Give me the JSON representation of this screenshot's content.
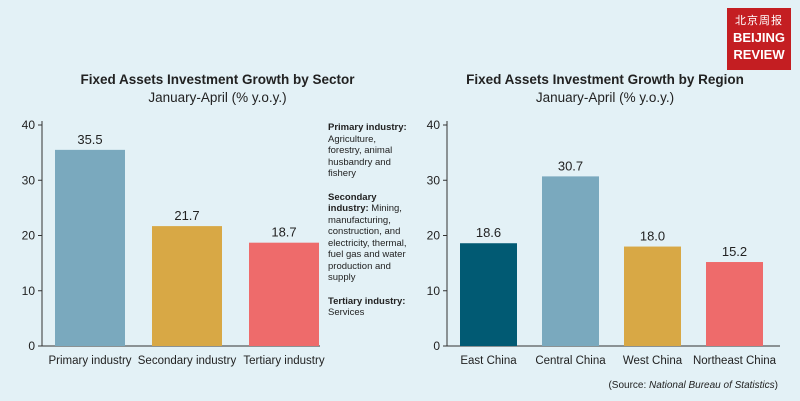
{
  "logo": {
    "cn": "北京周报",
    "en_line1": "BEIJING",
    "en_line2": "REVIEW"
  },
  "source": {
    "prefix": "(Source: ",
    "name": "National Bureau of Statistics",
    "suffix": ")"
  },
  "notes": [
    {
      "head": "Primary industry:",
      "body": " Agriculture, forestry, animal husbandry and fishery"
    },
    {
      "head": "Secondary industry:",
      "body": " Mining, manufacturing, construction, and electricity, thermal, fuel gas and water production and supply"
    },
    {
      "head": "Tertiary industry:",
      "body": " Services"
    }
  ],
  "chart_data": [
    {
      "type": "bar",
      "title": "Fixed Assets Investment Growth by Sector",
      "subtitle": "January-April (% y.o.y.)",
      "categories": [
        "Primary industry",
        "Secondary industry",
        "Tertiary industry"
      ],
      "values": [
        35.5,
        21.7,
        18.7
      ],
      "colors": [
        "#7aa9be",
        "#d8a845",
        "#ee6b6b"
      ],
      "ylim": [
        0,
        40
      ],
      "yticks": [
        0,
        10,
        20,
        30,
        40
      ],
      "data_labels": [
        "35.5",
        "21.7",
        "18.7"
      ],
      "grid": false
    },
    {
      "type": "bar",
      "title": "Fixed Assets Investment Growth by Region",
      "subtitle": "January-April (% y.o.y.)",
      "categories": [
        "East China",
        "Central China",
        "West China",
        "Northeast China"
      ],
      "values": [
        18.6,
        30.7,
        18.0,
        15.2
      ],
      "colors": [
        "#015a73",
        "#7aa9be",
        "#d8a845",
        "#ee6b6b"
      ],
      "ylim": [
        0,
        40
      ],
      "yticks": [
        0,
        10,
        20,
        30,
        40
      ],
      "data_labels": [
        "18.6",
        "30.7",
        "18.0",
        "15.2"
      ],
      "grid": false
    }
  ]
}
